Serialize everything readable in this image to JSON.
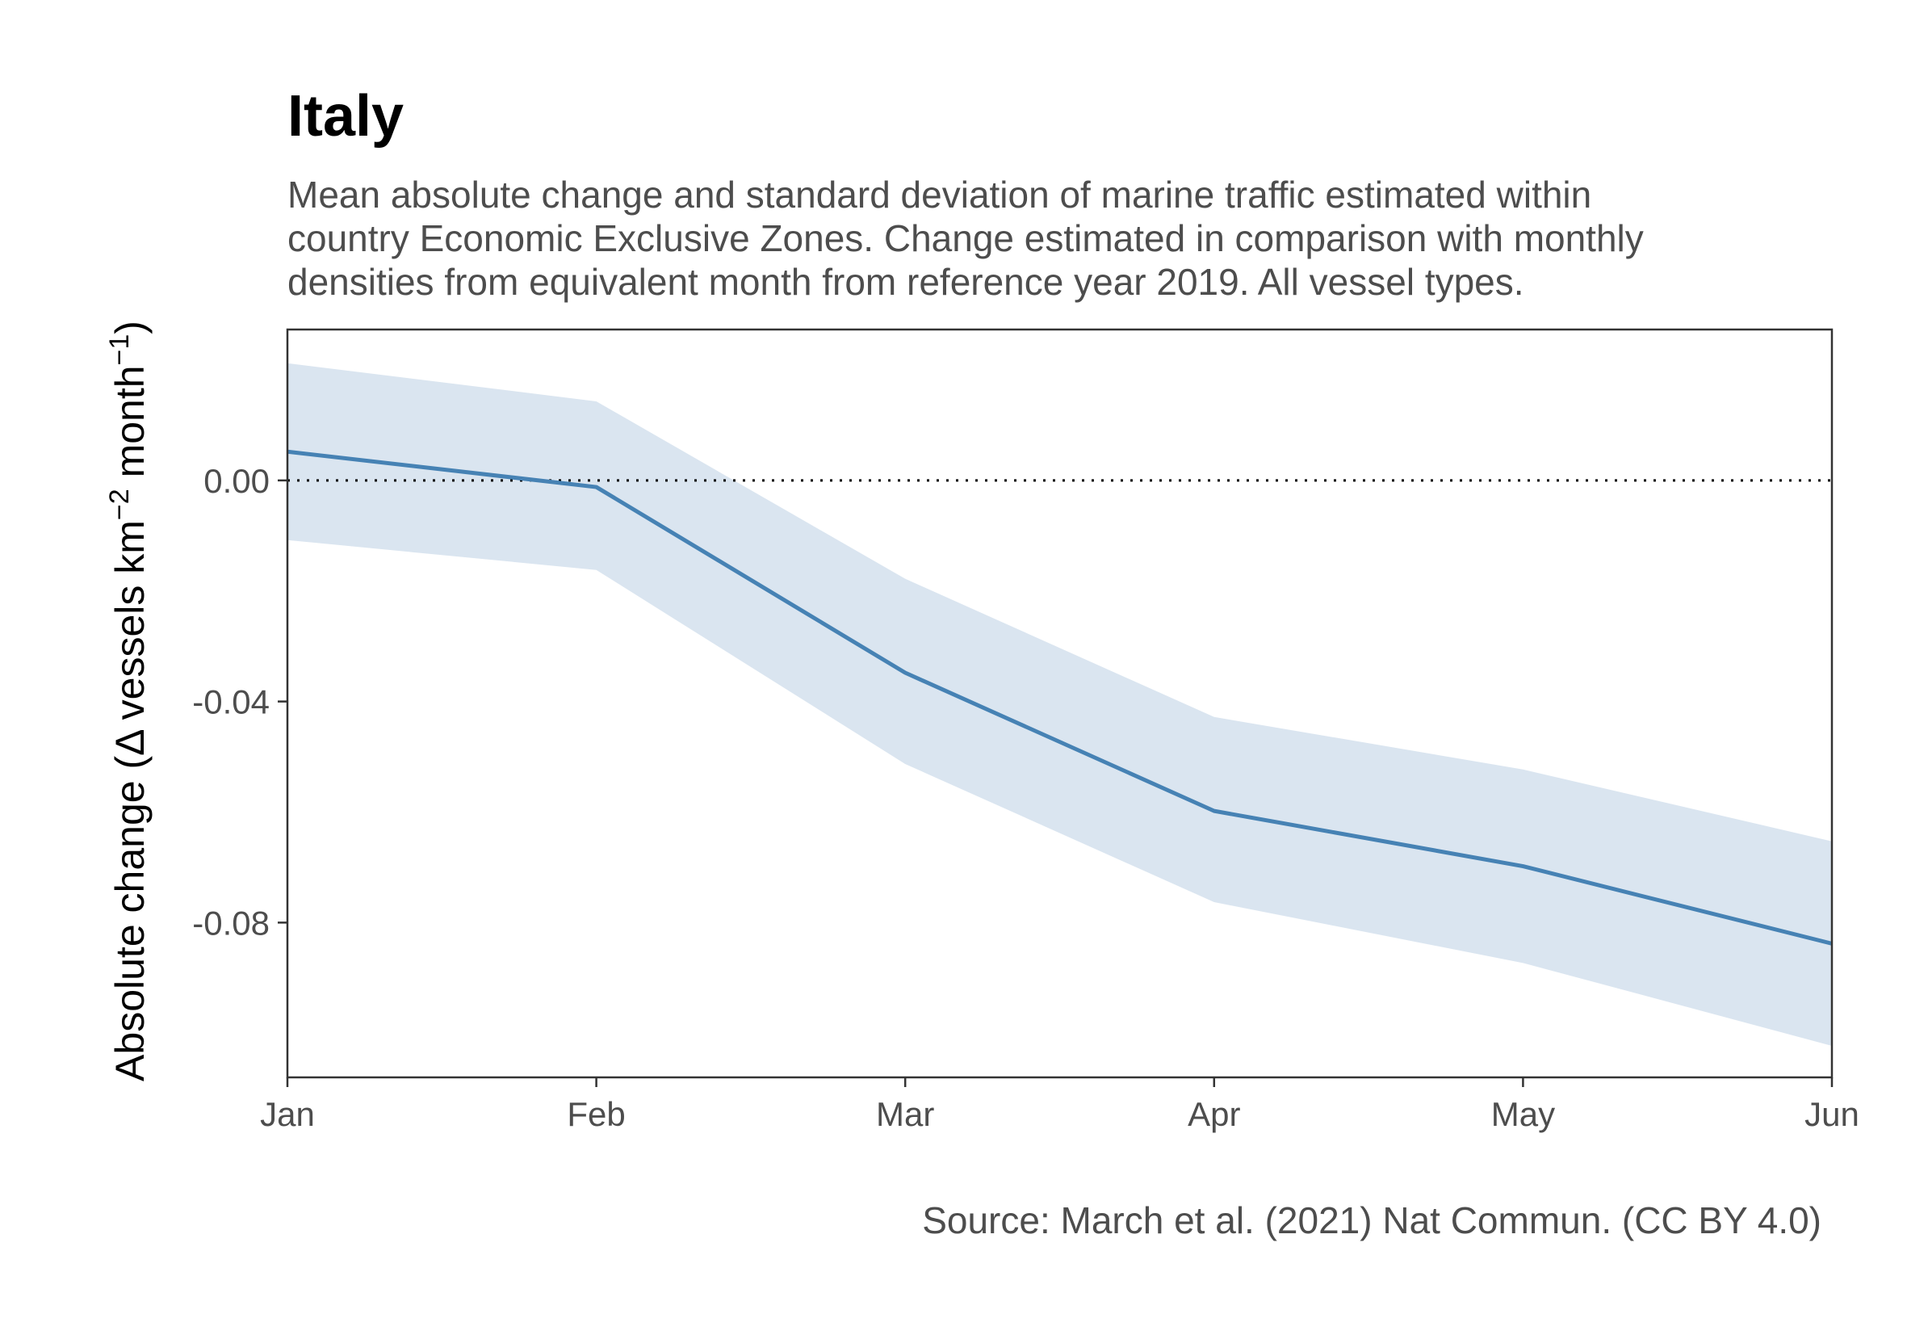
{
  "chart_data": {
    "type": "line",
    "title": "Italy",
    "subtitle_lines": [
      "Mean absolute change and standard deviation of marine traffic estimated within",
      "country Economic Exclusive Zones. Change estimated in comparison with monthly",
      "densities from equivalent month from reference year 2019. All vessel types."
    ],
    "caption": "Source: March et al. (2021) Nat Commun. (CC BY 4.0)",
    "ylabel": {
      "prefix": "Absolute change (",
      "delta": "Δ",
      "vessels_km": " vessels km",
      "exp_km": "−2",
      "month": " month",
      "exp_month": "−1",
      "suffix": ")"
    },
    "xlabel": "",
    "categories": [
      "Jan",
      "Feb",
      "Mar",
      "Apr",
      "May",
      "Jun"
    ],
    "series": [
      {
        "values": [
          0.0052,
          -0.0012,
          -0.0348,
          -0.0598,
          -0.0698,
          -0.0838
        ],
        "upper": [
          0.0212,
          0.0143,
          -0.0178,
          -0.0428,
          -0.0523,
          -0.0653
        ],
        "lower": [
          -0.0108,
          -0.0162,
          -0.0513,
          -0.0763,
          -0.0873,
          -0.1023
        ]
      }
    ],
    "y_ticks": [
      {
        "value": 0.0,
        "label": "0.00"
      },
      {
        "value": -0.04,
        "label": "-0.04"
      },
      {
        "value": -0.08,
        "label": "-0.08"
      }
    ],
    "ylim": [
      -0.108,
      0.0273
    ],
    "reference_line": 0.0,
    "grid": false,
    "colors": {
      "line": "#4682b4",
      "band": "#dae5f0",
      "reference": "#000000",
      "axis": "#333333"
    }
  }
}
